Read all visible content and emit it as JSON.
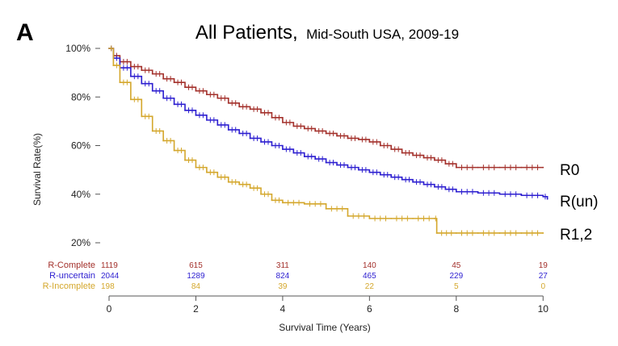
{
  "panel_label": "A",
  "title": {
    "main": "All Patients,",
    "sub": "Mid-South USA, 2009-19"
  },
  "chart_data": {
    "type": "line",
    "subtype": "kaplan-meier",
    "xlabel": "Survival Time (Years)",
    "ylabel": "Survival Rate(%)",
    "xlim": [
      0,
      10.2
    ],
    "ylim": [
      20,
      100
    ],
    "xticks": [
      0,
      2,
      4,
      6,
      8,
      10
    ],
    "yticks": [
      20,
      40,
      60,
      80,
      100
    ],
    "ytick_labels": [
      "20%",
      "40%",
      "60%",
      "80%",
      "100%"
    ],
    "grid": false,
    "series": [
      {
        "name": "R0",
        "risk_name": "R-Complete",
        "color": "#a3302b",
        "x": [
          0,
          0.1,
          0.25,
          0.5,
          0.75,
          1,
          1.25,
          1.5,
          1.75,
          2,
          2.25,
          2.5,
          2.75,
          3,
          3.25,
          3.5,
          3.75,
          4,
          4.25,
          4.5,
          4.75,
          5,
          5.25,
          5.5,
          5.75,
          6,
          6.25,
          6.5,
          6.75,
          7,
          7.25,
          7.5,
          7.75,
          8,
          8.5,
          9,
          9.5,
          10
        ],
        "y": [
          100,
          97,
          94.5,
          92.5,
          91,
          89.5,
          87.5,
          86,
          84,
          82.5,
          81,
          79.5,
          77.5,
          76,
          75,
          73.5,
          71.5,
          69.5,
          68,
          67,
          66,
          65,
          64,
          63,
          62.5,
          61.5,
          60,
          58.5,
          57,
          56,
          55,
          54,
          52.5,
          51,
          51,
          51,
          51,
          51
        ]
      },
      {
        "name": "R(un)",
        "risk_name": "R-uncertain",
        "color": "#2d1fd0",
        "x": [
          0,
          0.1,
          0.25,
          0.5,
          0.75,
          1,
          1.25,
          1.5,
          1.75,
          2,
          2.25,
          2.5,
          2.75,
          3,
          3.25,
          3.5,
          3.75,
          4,
          4.25,
          4.5,
          4.75,
          5,
          5.25,
          5.5,
          5.75,
          6,
          6.25,
          6.5,
          6.75,
          7,
          7.25,
          7.5,
          7.75,
          8,
          8.5,
          9,
          9.5,
          10,
          10.1
        ],
        "y": [
          100,
          96,
          92,
          88.5,
          85.5,
          82.5,
          79.5,
          77,
          74.5,
          72.5,
          70.5,
          68.5,
          66.5,
          65,
          63,
          61.5,
          60,
          58.5,
          57,
          55.5,
          54.5,
          53,
          52,
          51,
          50,
          49,
          48,
          47,
          46,
          45,
          44,
          43,
          42,
          41,
          40.5,
          40,
          39.5,
          39,
          38
        ]
      },
      {
        "name": "R1,2",
        "risk_name": "R-Incomplete",
        "color": "#d4a72c",
        "x": [
          0,
          0.1,
          0.25,
          0.5,
          0.75,
          1,
          1.25,
          1.5,
          1.75,
          2,
          2.25,
          2.5,
          2.75,
          3,
          3.25,
          3.5,
          3.75,
          4,
          4.5,
          5,
          5.5,
          6,
          6.5,
          7,
          7.5,
          7.55,
          8,
          8.5,
          9,
          9.5,
          10
        ],
        "y": [
          100,
          93,
          86,
          79,
          72,
          66,
          62,
          58,
          54,
          51,
          49,
          47,
          45,
          44,
          42.5,
          40,
          37.5,
          36.5,
          36,
          34,
          31,
          30,
          30,
          30,
          30,
          24,
          24,
          24,
          24,
          24,
          24
        ]
      }
    ],
    "risk_table": {
      "times": [
        0,
        2,
        4,
        6,
        8,
        10
      ],
      "rows": [
        {
          "label": "R-Complete",
          "color": "#a3302b",
          "values": [
            "1119",
            "615",
            "311",
            "140",
            "45",
            "19"
          ]
        },
        {
          "label": "R-uncertain",
          "color": "#2d1fd0",
          "values": [
            "2044",
            "1289",
            "824",
            "465",
            "229",
            "27"
          ]
        },
        {
          "label": "R-Incomplete",
          "color": "#d4a72c",
          "values": [
            "198",
            "84",
            "39",
            "22",
            "5",
            "0"
          ]
        }
      ]
    }
  }
}
